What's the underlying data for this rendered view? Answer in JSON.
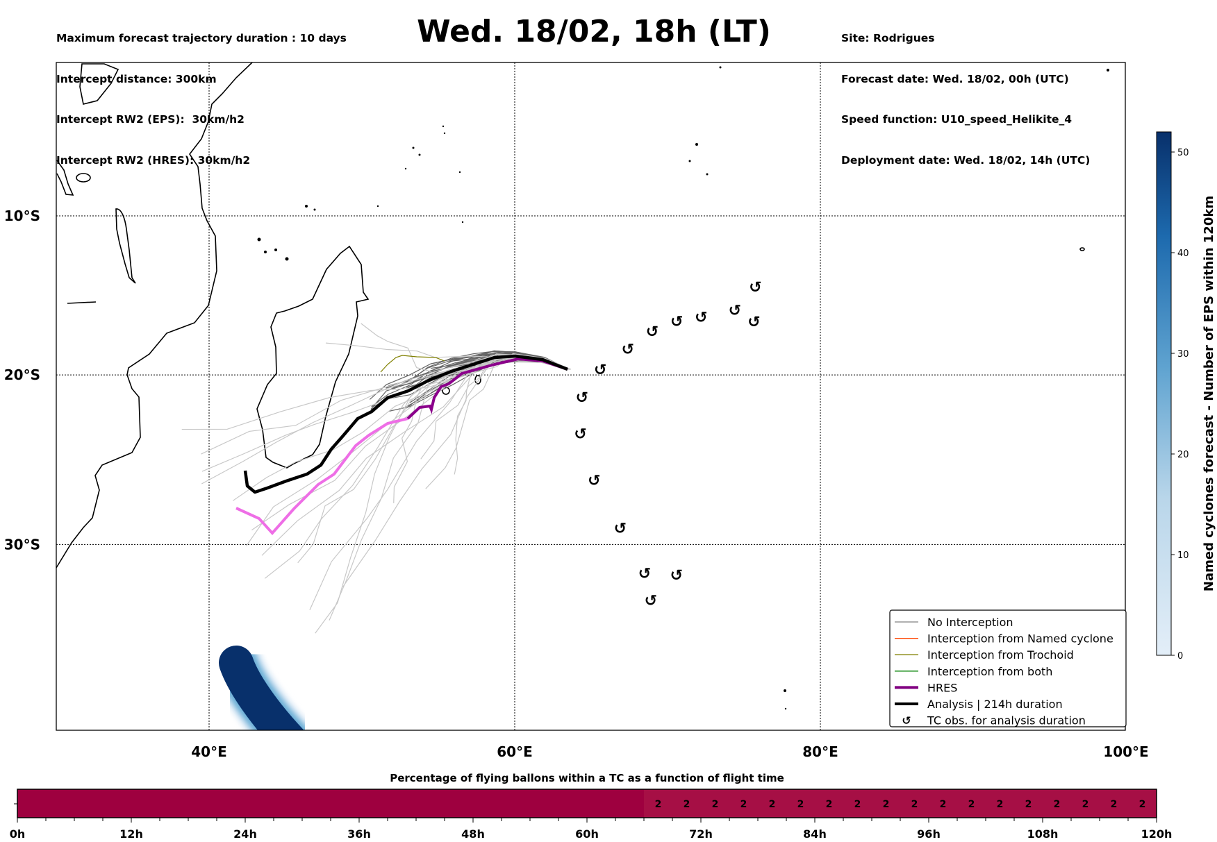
{
  "header": {
    "left": [
      "Maximum forecast trajectory duration : 10 days",
      "Intercept distance: 300km",
      "Intercept RW2 (EPS):  30km/h2",
      "Intercept RW2 (HRES): 30km/h2"
    ],
    "title": "Wed. 18/02, 18h (LT)",
    "right": [
      "Site: Rodrigues",
      "Forecast date: Wed. 18/02, 00h (UTC)",
      "Speed function: U10_speed_Helikite_4",
      "Deployment date: Wed. 18/02, 14h (UTC)"
    ]
  },
  "map": {
    "extent_lon": [
      30,
      100
    ],
    "extent_lat": [
      0,
      -40
    ],
    "lat_labels": [
      {
        "lat": -10,
        "label": "10°S"
      },
      {
        "lat": -20,
        "label": "20°S"
      },
      {
        "lat": -30,
        "label": "30°S"
      }
    ],
    "lon_labels": [
      {
        "lon": 40,
        "label": "40°E"
      },
      {
        "lon": 60,
        "label": "60°E"
      },
      {
        "lon": 80,
        "label": "80°E"
      },
      {
        "lon": 100,
        "label": "100°E"
      }
    ],
    "tc_obs": [
      {
        "lon": 75.75,
        "lat": -14.5
      },
      {
        "lon": 75.66,
        "lat": -15.56
      },
      {
        "lon": 74.4,
        "lat": -15.98
      },
      {
        "lon": 72.2,
        "lat": -16.4
      },
      {
        "lon": 70.6,
        "lat": -16.66
      },
      {
        "lon": 69.0,
        "lat": -17.3
      },
      {
        "lon": 67.4,
        "lat": -18.4
      },
      {
        "lon": 65.6,
        "lat": -19.66
      },
      {
        "lon": 64.4,
        "lat": -21.35
      },
      {
        "lon": 64.3,
        "lat": -23.55
      },
      {
        "lon": 65.2,
        "lat": -26.3
      },
      {
        "lon": 66.9,
        "lat": -29.07
      },
      {
        "lon": 68.5,
        "lat": -31.6
      },
      {
        "lon": 69.4,
        "lat": -31.7
      },
      {
        "lon": 68.9,
        "lat": -32.1
      }
    ],
    "tc_symbol": "↺"
  },
  "legend": {
    "items": [
      {
        "label": "No Interception",
        "color": "#808080"
      },
      {
        "label": "Interception from Named cyclone",
        "color": "#ff4500"
      },
      {
        "label": "Interception from Trochoid",
        "color": "#808000"
      },
      {
        "label": "Interception from both",
        "color": "#008000"
      },
      {
        "label": "HRES",
        "color": "#800080"
      },
      {
        "label": "Analysis | 214h duration",
        "color": "#000000"
      },
      {
        "label": "TC obs. for analysis duration",
        "color": "#000000"
      }
    ]
  },
  "colorbar": {
    "label": "Named cyclones forecast - Number of EPS within 120km",
    "range": [
      0,
      52
    ],
    "ticks": [
      "0",
      "10",
      "20",
      "30",
      "40",
      "50"
    ],
    "color_low": "#e3eef8",
    "color_high": "#08306b"
  },
  "chart_data": {
    "type": "heatmap",
    "title": "Percentage of flying ballons within a TC as a function of flight time",
    "xlabel": "",
    "xlim": [
      0,
      120
    ],
    "x_tick_labels": [
      "0h",
      "12h",
      "24h",
      "36h",
      "48h",
      "60h",
      "72h",
      "84h",
      "96h",
      "108h",
      "120h"
    ],
    "segments": [
      {
        "start_h": 0,
        "end_h": 66,
        "value": 0,
        "color": "#9e003f"
      },
      {
        "start_h": 66,
        "end_h": 120,
        "value": 2,
        "color": "#a60f45"
      }
    ],
    "cell_labels": {
      "hours": [
        67.5,
        70.5,
        73.5,
        76.5,
        79.5,
        82.5,
        85.5,
        88.5,
        91.5,
        94.5,
        97.5,
        100.5,
        103.5,
        106.5,
        109.5,
        112.5,
        115.5,
        118.5
      ],
      "values": [
        "2",
        "2",
        "2",
        "2",
        "2",
        "2",
        "2",
        "2",
        "2",
        "2",
        "2",
        "2",
        "2",
        "2",
        "2",
        "2",
        "2",
        "2"
      ]
    }
  }
}
